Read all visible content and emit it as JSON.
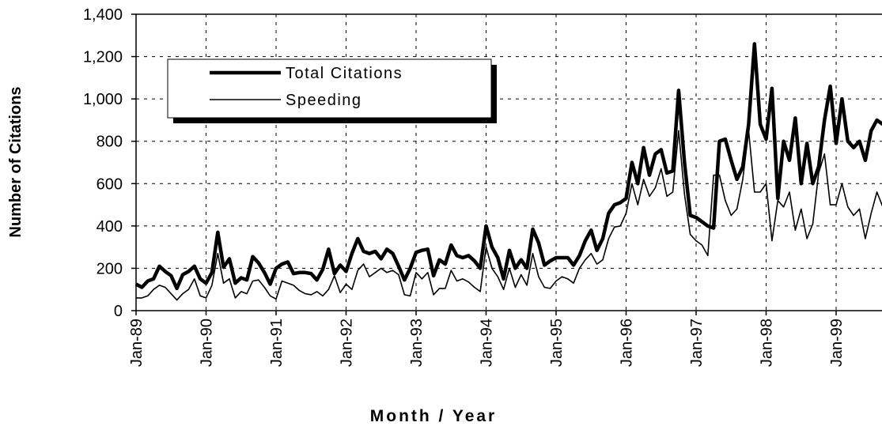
{
  "chart_data": {
    "type": "line",
    "x_label": "Month / Year",
    "y_label": "Number of Citations",
    "legend": "upper left",
    "grid": true,
    "categories": [
      "Jan-89",
      null,
      null,
      null,
      null,
      null,
      null,
      null,
      null,
      null,
      null,
      null,
      "Jan-90",
      null,
      null,
      null,
      null,
      null,
      null,
      null,
      null,
      null,
      null,
      null,
      "Jan-91",
      null,
      null,
      null,
      null,
      null,
      null,
      null,
      null,
      null,
      null,
      null,
      "Jan-92",
      null,
      null,
      null,
      null,
      null,
      null,
      null,
      null,
      null,
      null,
      null,
      "Jan-93",
      null,
      null,
      null,
      null,
      null,
      null,
      null,
      null,
      null,
      null,
      null,
      "Jan-94",
      null,
      null,
      null,
      null,
      null,
      null,
      null,
      null,
      null,
      null,
      null,
      "Jan-95",
      null,
      null,
      null,
      null,
      null,
      null,
      null,
      null,
      null,
      null,
      null,
      "Jan-96",
      null,
      null,
      null,
      null,
      null,
      null,
      null,
      null,
      null,
      null,
      null,
      "Jan-97",
      null,
      null,
      null,
      null,
      null,
      null,
      null,
      null,
      null,
      null,
      null,
      "Jan-98",
      null,
      null,
      null,
      null,
      null,
      null,
      null,
      null,
      null,
      null,
      null,
      "Jan-99",
      null,
      null,
      null,
      null,
      null,
      null,
      null,
      null
    ],
    "ylim": [
      0,
      1400
    ],
    "yticks": [
      0,
      200,
      400,
      600,
      800,
      {
        "value": 1000,
        "label": "1,000"
      },
      {
        "value": 1200,
        "label": "1,200"
      },
      {
        "value": 1400,
        "label": "1,400"
      }
    ],
    "series": [
      {
        "name": "Total Citations",
        "color": "#000000",
        "width": 4.5,
        "values": [
          125,
          110,
          140,
          150,
          210,
          185,
          165,
          105,
          170,
          185,
          210,
          150,
          130,
          180,
          370,
          205,
          245,
          130,
          155,
          145,
          255,
          225,
          180,
          125,
          200,
          220,
          230,
          175,
          180,
          180,
          175,
          145,
          195,
          290,
          175,
          215,
          185,
          270,
          340,
          280,
          270,
          280,
          245,
          290,
          270,
          210,
          145,
          200,
          275,
          285,
          290,
          165,
          240,
          220,
          310,
          260,
          250,
          260,
          235,
          200,
          400,
          300,
          250,
          150,
          285,
          200,
          240,
          200,
          385,
          320,
          215,
          235,
          250,
          250,
          250,
          215,
          260,
          330,
          380,
          285,
          340,
          460,
          500,
          510,
          530,
          700,
          600,
          770,
          640,
          740,
          760,
          650,
          660,
          1040,
          700,
          450,
          440,
          420,
          400,
          390,
          800,
          810,
          710,
          620,
          680,
          880,
          1260,
          880,
          810,
          1050,
          530,
          800,
          710,
          910,
          600,
          790,
          600,
          680,
          900,
          1060,
          790,
          1000,
          800,
          770,
          800,
          710,
          850,
          900,
          880
        ]
      },
      {
        "name": "Speeding",
        "color": "#000000",
        "width": 1.6,
        "values": [
          60,
          60,
          70,
          100,
          120,
          110,
          80,
          50,
          80,
          100,
          150,
          70,
          60,
          120,
          270,
          130,
          150,
          60,
          90,
          80,
          140,
          145,
          110,
          70,
          55,
          140,
          130,
          120,
          95,
          80,
          75,
          90,
          70,
          100,
          165,
          85,
          125,
          100,
          190,
          220,
          160,
          180,
          200,
          180,
          190,
          170,
          75,
          70,
          180,
          150,
          180,
          75,
          105,
          105,
          190,
          140,
          150,
          135,
          110,
          90,
          300,
          200,
          160,
          100,
          200,
          110,
          170,
          120,
          270,
          160,
          110,
          105,
          140,
          160,
          150,
          130,
          200,
          240,
          270,
          220,
          240,
          340,
          395,
          400,
          460,
          600,
          500,
          620,
          540,
          580,
          670,
          540,
          560,
          850,
          550,
          360,
          330,
          310,
          260,
          640,
          640,
          520,
          450,
          480,
          620,
          850,
          560,
          560,
          600,
          330,
          520,
          490,
          560,
          380,
          480,
          340,
          410,
          650,
          740,
          500,
          500,
          600,
          490,
          450,
          480,
          340,
          460,
          560,
          490
        ]
      }
    ]
  }
}
